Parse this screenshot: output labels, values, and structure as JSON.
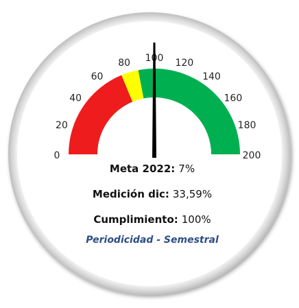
{
  "chart_data": {
    "type": "gauge",
    "value": 100,
    "ylim": [
      0,
      200
    ],
    "yticks": [
      0,
      20,
      40,
      60,
      80,
      100,
      120,
      140,
      160,
      180,
      200
    ],
    "bands": [
      {
        "from": 0,
        "to": 75,
        "color": "#ee1c1c"
      },
      {
        "from": 75,
        "to": 88,
        "color": "#ffff00"
      },
      {
        "from": 88,
        "to": 200,
        "color": "#00b050"
      }
    ],
    "needle_color": "#000000",
    "lines": [
      {
        "label": "Meta 2022:",
        "value": "7%"
      },
      {
        "label": "Medición dic:",
        "value": "33,59%"
      },
      {
        "label": "Cumplimiento:",
        "value": "100%"
      }
    ],
    "note": "Periodicidad - Semestral"
  }
}
